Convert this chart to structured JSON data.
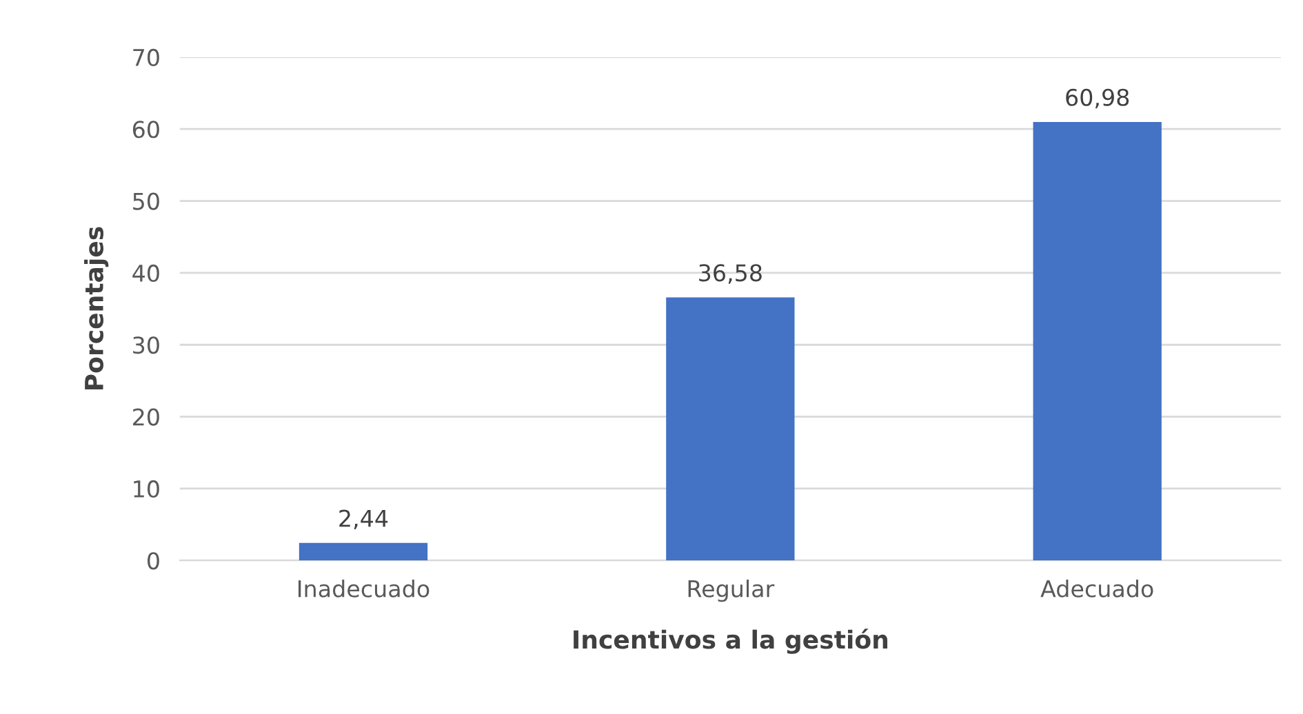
{
  "chart_data": {
    "type": "bar",
    "xlabel": "Incentivos a la gestión",
    "ylabel": "Porcentajes",
    "categories": [
      "Inadecuado",
      "Regular",
      "Adecuado"
    ],
    "values": [
      2.44,
      36.58,
      60.98
    ],
    "value_labels": [
      "2,44",
      "36,58",
      "60,98"
    ],
    "color": "#4472c4",
    "ylim": [
      0,
      70
    ],
    "yticks": [
      0,
      10,
      20,
      30,
      40,
      50,
      60,
      70
    ],
    "grid": "y"
  }
}
